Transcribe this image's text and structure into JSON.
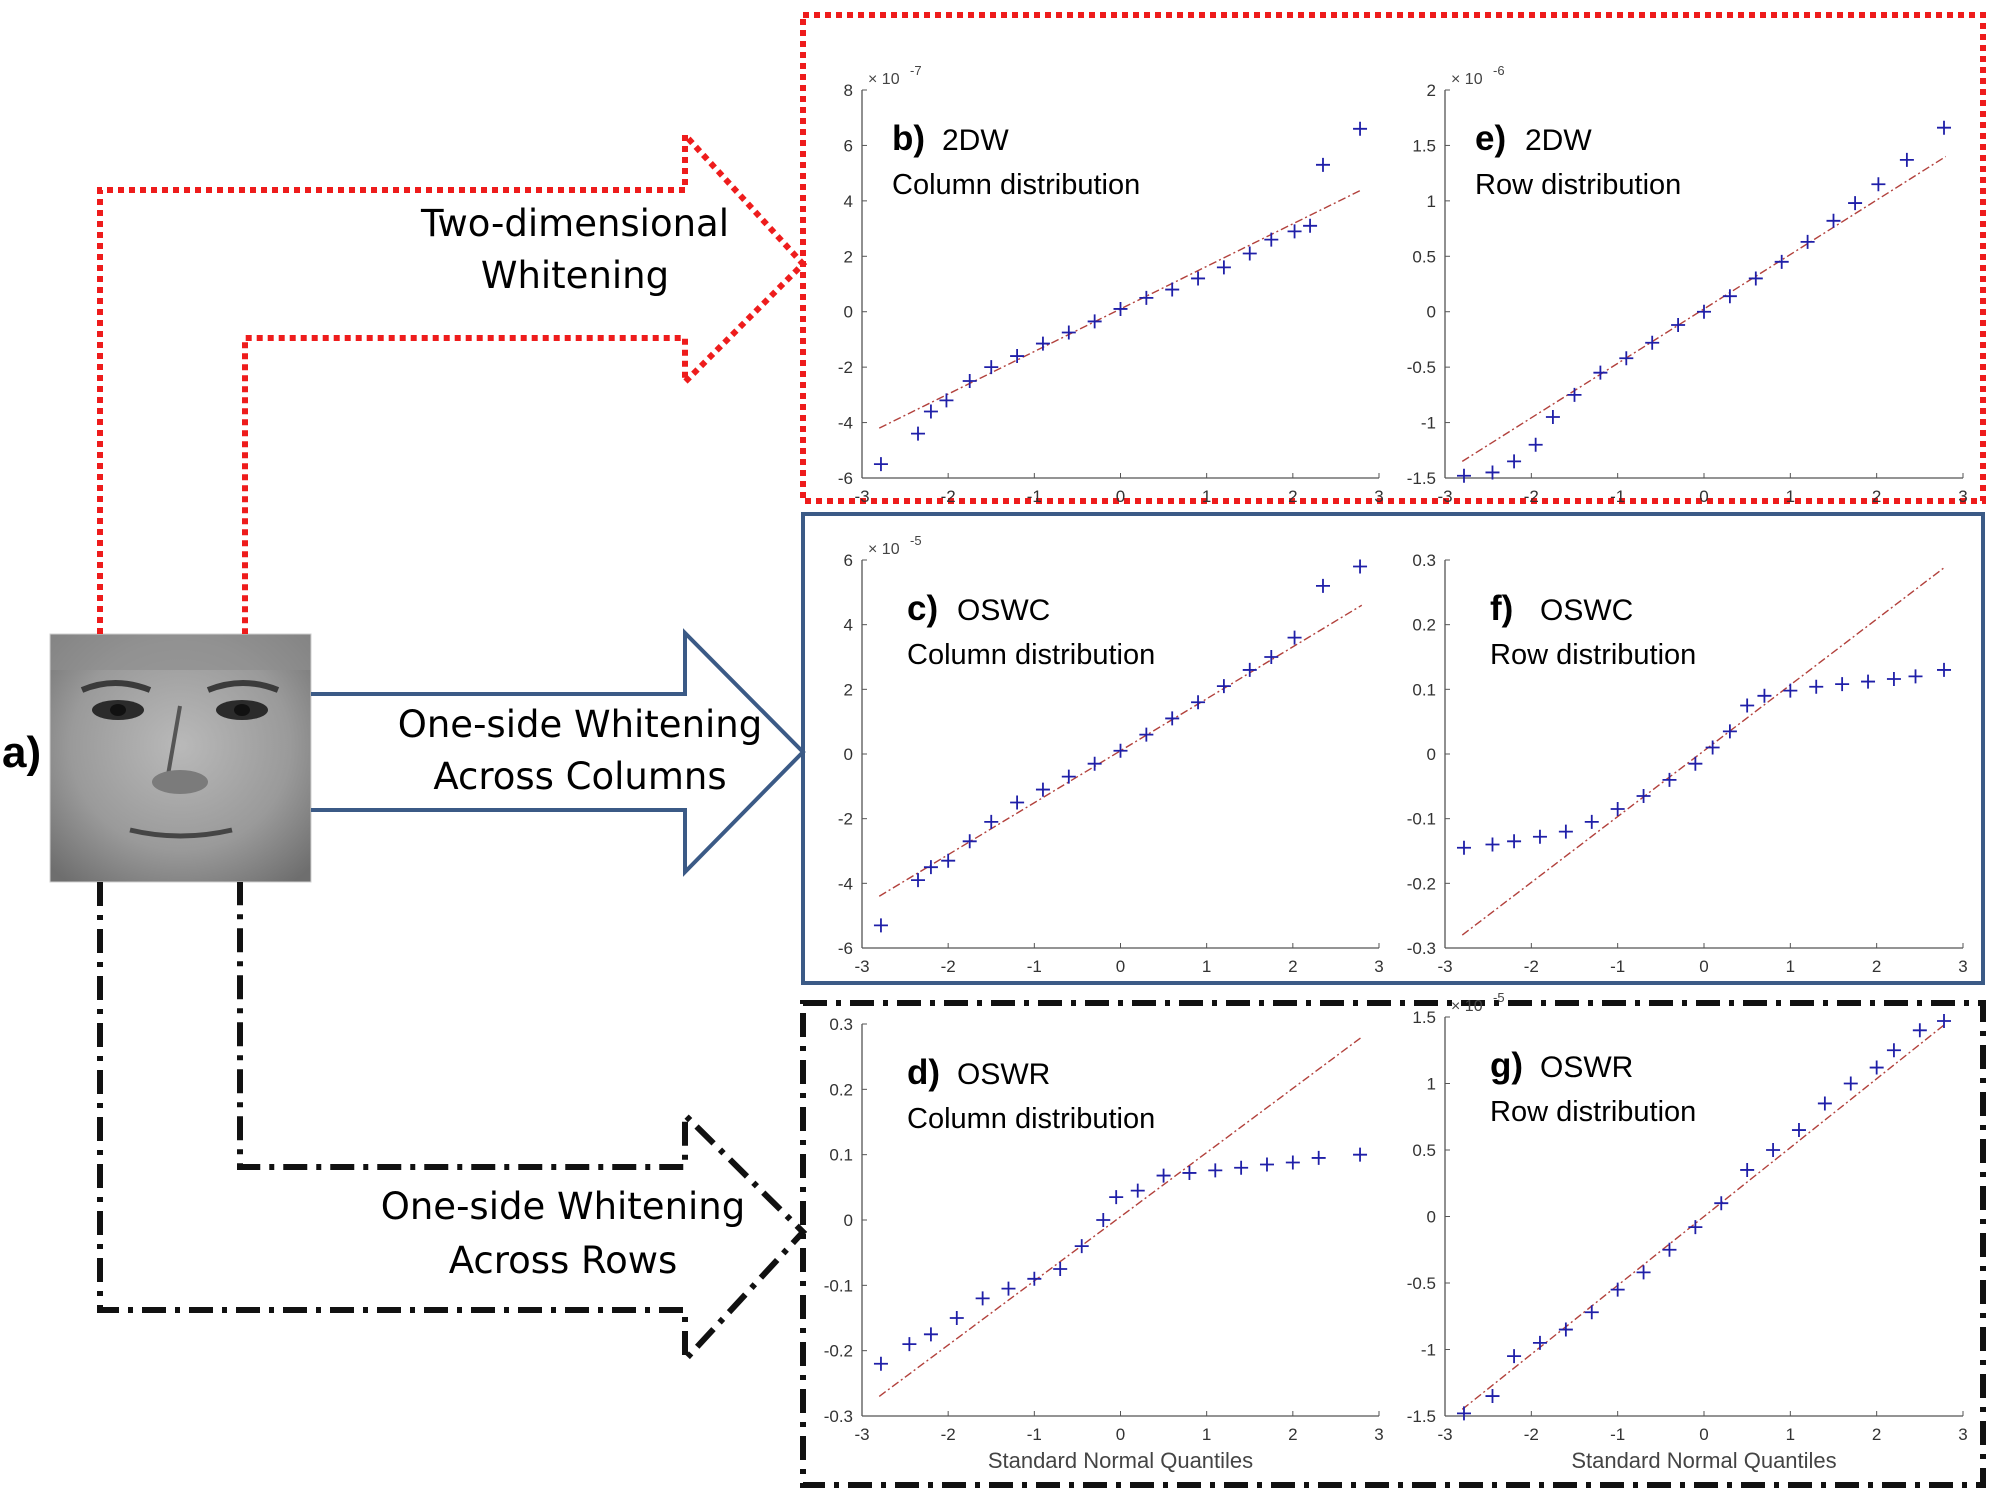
{
  "figure": {
    "input_label": "a)",
    "arrows": [
      {
        "line1": "Two-dimensional",
        "line2": "Whitening"
      },
      {
        "line1": "One-side Whitening",
        "line2": "Across Columns"
      },
      {
        "line1": "One-side Whitening",
        "line2": "Across Rows"
      }
    ]
  },
  "colors": {
    "markers": "#1f1fa8",
    "reference_line": "#b2413c",
    "group_2dw": "#ee1c1c",
    "group_oswc": "#3b5a86",
    "group_oswr": "#111111"
  },
  "chart_data": [
    {
      "type": "scatter",
      "id": "b",
      "letter": "b)",
      "method": "2DW",
      "subtitle": "Column distribution",
      "xlabel": "",
      "ylabel": "",
      "xlim": [
        -3,
        3
      ],
      "ylim": [
        -6,
        8
      ],
      "xticks": [
        -3,
        -2,
        -1,
        0,
        1,
        2,
        3
      ],
      "yticks": [
        -6,
        -4,
        -2,
        0,
        2,
        4,
        6,
        8
      ],
      "ytick_labels": [
        "-6",
        "-4",
        "-2",
        "0",
        "2",
        "4",
        "6",
        "8"
      ],
      "exponent": "× 10",
      "exponent_power": "-7",
      "ref_line": {
        "x": [
          -2.8,
          2.8
        ],
        "y": [
          -4.2,
          4.4
        ]
      },
      "points": {
        "x": [
          -2.78,
          -2.35,
          -2.2,
          -2.02,
          -1.75,
          -1.5,
          -1.2,
          -0.9,
          -0.6,
          -0.3,
          0,
          0.3,
          0.6,
          0.9,
          1.2,
          1.5,
          1.75,
          2.02,
          2.2,
          2.35,
          2.78
        ],
        "y": [
          -5.5,
          -4.4,
          -3.6,
          -3.2,
          -2.5,
          -2.0,
          -1.6,
          -1.15,
          -0.75,
          -0.35,
          0.1,
          0.5,
          0.8,
          1.2,
          1.6,
          2.1,
          2.6,
          2.9,
          3.1,
          5.3,
          6.6
        ]
      }
    },
    {
      "type": "scatter",
      "id": "e",
      "letter": "e)",
      "method": "2DW",
      "subtitle": "Row distribution",
      "xlabel": "",
      "ylabel": "",
      "xlim": [
        -3,
        3
      ],
      "ylim": [
        -1.5,
        2
      ],
      "xticks": [
        -3,
        -2,
        -1,
        0,
        1,
        2,
        3
      ],
      "yticks": [
        -1.5,
        -1,
        -0.5,
        0,
        0.5,
        1,
        1.5,
        2
      ],
      "ytick_labels": [
        "-1.5",
        "-1",
        "-0.5",
        "0",
        "0.5",
        "1",
        "1.5",
        "2"
      ],
      "exponent": "× 10",
      "exponent_power": "-6",
      "ref_line": {
        "x": [
          -2.8,
          2.8
        ],
        "y": [
          -1.35,
          1.4
        ]
      },
      "points": {
        "x": [
          -2.78,
          -2.45,
          -2.2,
          -1.95,
          -1.75,
          -1.5,
          -1.2,
          -0.9,
          -0.6,
          -0.3,
          0,
          0.3,
          0.6,
          0.9,
          1.2,
          1.5,
          1.75,
          2.02,
          2.35,
          2.78
        ],
        "y": [
          -1.48,
          -1.45,
          -1.35,
          -1.2,
          -0.95,
          -0.75,
          -0.55,
          -0.42,
          -0.28,
          -0.12,
          0.0,
          0.14,
          0.3,
          0.45,
          0.63,
          0.82,
          0.98,
          1.15,
          1.37,
          1.66
        ]
      }
    },
    {
      "type": "scatter",
      "id": "c",
      "letter": "c)",
      "method": "OSWC",
      "subtitle": "Column distribution",
      "xlabel": "",
      "ylabel": "",
      "xlim": [
        -3,
        3
      ],
      "ylim": [
        -6,
        6
      ],
      "xticks": [
        -3,
        -2,
        -1,
        0,
        1,
        2,
        3
      ],
      "yticks": [
        -6,
        -4,
        -2,
        0,
        2,
        4,
        6
      ],
      "ytick_labels": [
        "-6",
        "-4",
        "-2",
        "0",
        "2",
        "4",
        "6"
      ],
      "exponent": "× 10",
      "exponent_power": "-5",
      "ref_line": {
        "x": [
          -2.8,
          2.8
        ],
        "y": [
          -4.4,
          4.6
        ]
      },
      "points": {
        "x": [
          -2.78,
          -2.35,
          -2.2,
          -2.0,
          -1.75,
          -1.5,
          -1.2,
          -0.9,
          -0.6,
          -0.3,
          0,
          0.3,
          0.6,
          0.9,
          1.2,
          1.5,
          1.75,
          2.02,
          2.35,
          2.78
        ],
        "y": [
          -5.3,
          -3.9,
          -3.5,
          -3.3,
          -2.7,
          -2.1,
          -1.5,
          -1.1,
          -0.7,
          -0.3,
          0.1,
          0.6,
          1.1,
          1.6,
          2.1,
          2.6,
          3.0,
          3.6,
          5.2,
          5.8
        ]
      }
    },
    {
      "type": "scatter",
      "id": "f",
      "letter": "f)",
      "method": "OSWC",
      "subtitle": "Row distribution",
      "xlabel": "",
      "ylabel": "",
      "xlim": [
        -3,
        3
      ],
      "ylim": [
        -0.3,
        0.3
      ],
      "xticks": [
        -3,
        -2,
        -1,
        0,
        1,
        2,
        3
      ],
      "yticks": [
        -0.3,
        -0.2,
        -0.1,
        0,
        0.1,
        0.2,
        0.3
      ],
      "ytick_labels": [
        "-0.3",
        "-0.2",
        "-0.1",
        "0",
        "0.1",
        "0.2",
        "0.3"
      ],
      "exponent": "",
      "exponent_power": "",
      "ref_line": {
        "x": [
          -2.8,
          2.8
        ],
        "y": [
          -0.28,
          0.29
        ]
      },
      "points": {
        "x": [
          -2.78,
          -2.45,
          -2.2,
          -1.9,
          -1.6,
          -1.3,
          -1.0,
          -0.7,
          -0.4,
          -0.1,
          0.1,
          0.3,
          0.5,
          0.7,
          1.0,
          1.3,
          1.6,
          1.9,
          2.2,
          2.45,
          2.78
        ],
        "y": [
          -0.145,
          -0.14,
          -0.135,
          -0.128,
          -0.12,
          -0.105,
          -0.085,
          -0.065,
          -0.04,
          -0.015,
          0.01,
          0.035,
          0.075,
          0.09,
          0.098,
          0.104,
          0.108,
          0.112,
          0.116,
          0.12,
          0.13
        ]
      }
    },
    {
      "type": "scatter",
      "id": "d",
      "letter": "d)",
      "method": "OSWR",
      "subtitle": "Column distribution",
      "xlabel": "Standard Normal Quantiles",
      "ylabel": "",
      "xlim": [
        -3,
        3
      ],
      "ylim": [
        -0.3,
        0.3
      ],
      "xticks": [
        -3,
        -2,
        -1,
        0,
        1,
        2,
        3
      ],
      "yticks": [
        -0.3,
        -0.2,
        -0.1,
        0,
        0.1,
        0.2,
        0.3
      ],
      "ytick_labels": [
        "-0.3",
        "-0.2",
        "-0.1",
        "0",
        "0.1",
        "0.2",
        "0.3"
      ],
      "exponent": "",
      "exponent_power": "",
      "ref_line": {
        "x": [
          -2.8,
          2.8
        ],
        "y": [
          -0.27,
          0.28
        ]
      },
      "points": {
        "x": [
          -2.78,
          -2.45,
          -2.2,
          -1.9,
          -1.6,
          -1.3,
          -1.0,
          -0.7,
          -0.45,
          -0.2,
          -0.05,
          0.2,
          0.5,
          0.8,
          1.1,
          1.4,
          1.7,
          2.0,
          2.3,
          2.78
        ],
        "y": [
          -0.22,
          -0.19,
          -0.175,
          -0.15,
          -0.12,
          -0.105,
          -0.09,
          -0.075,
          -0.04,
          0.0,
          0.035,
          0.045,
          0.068,
          0.072,
          0.076,
          0.08,
          0.085,
          0.088,
          0.095,
          0.1
        ]
      }
    },
    {
      "type": "scatter",
      "id": "g",
      "letter": "g)",
      "method": "OSWR",
      "subtitle": "Row distribution",
      "xlabel": "Standard Normal Quantiles",
      "ylabel": "",
      "xlim": [
        -3,
        3
      ],
      "ylim": [
        -1.5,
        1.5
      ],
      "xticks": [
        -3,
        -2,
        -1,
        0,
        1,
        2,
        3
      ],
      "yticks": [
        -1.5,
        -1,
        -0.5,
        0,
        0.5,
        1,
        1.5
      ],
      "ytick_labels": [
        "-1.5",
        "-1",
        "-0.5",
        "0",
        "0.5",
        "1",
        "1.5"
      ],
      "exponent": "× 10",
      "exponent_power": "-5",
      "ref_line": {
        "x": [
          -2.8,
          2.8
        ],
        "y": [
          -1.45,
          1.45
        ]
      },
      "points": {
        "x": [
          -2.78,
          -2.45,
          -2.2,
          -1.9,
          -1.6,
          -1.3,
          -1.0,
          -0.7,
          -0.4,
          -0.1,
          0.2,
          0.5,
          0.8,
          1.1,
          1.4,
          1.7,
          2.0,
          2.2,
          2.5,
          2.78
        ],
        "y": [
          -1.48,
          -1.35,
          -1.05,
          -0.95,
          -0.85,
          -0.72,
          -0.55,
          -0.42,
          -0.25,
          -0.08,
          0.1,
          0.35,
          0.5,
          0.65,
          0.85,
          1.0,
          1.12,
          1.25,
          1.4,
          1.47
        ]
      }
    }
  ]
}
